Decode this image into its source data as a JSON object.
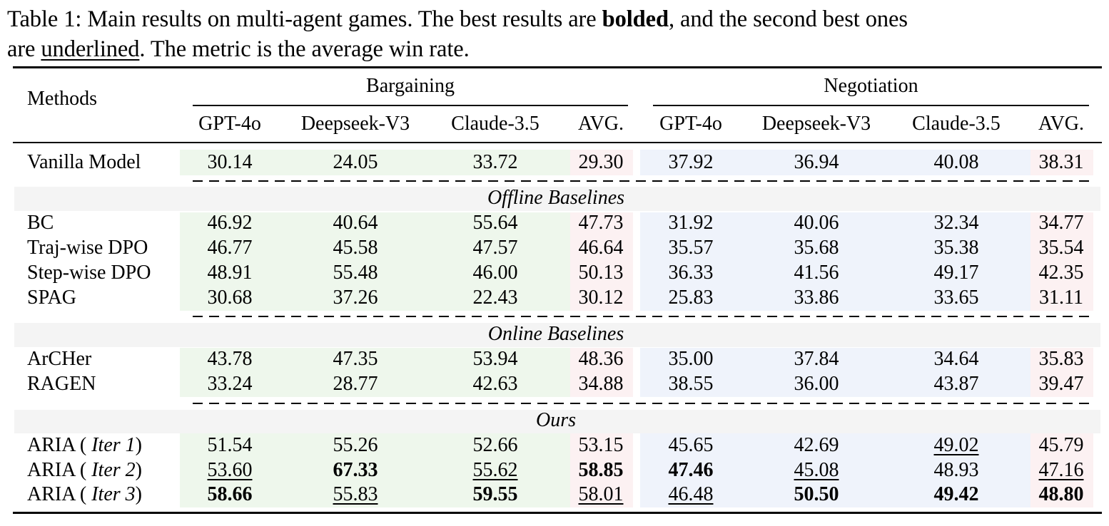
{
  "caption": {
    "p1": "Table 1: Main results on multi-agent games. The best results are ",
    "bold_word": "bolded",
    "p2": ", and the second best ones",
    "p3": "are ",
    "underline_word": "underlined",
    "p4": ". The metric is the average win rate."
  },
  "header": {
    "methods": "Methods",
    "group1": "Bargaining",
    "group2": "Negotiation",
    "columns": [
      "GPT-4o",
      "Deepseek-V3",
      "Claude-3.5",
      "AVG.",
      "GPT-4o",
      "Deepseek-V3",
      "Claude-3.5",
      "AVG."
    ]
  },
  "sections": {
    "offline": "Offline Baselines",
    "online": "Online Baselines",
    "ours": "Ours"
  },
  "iter_labels": {
    "prefix": "ARIA ( ",
    "iter1": "Iter 1",
    "iter2": "Iter 2",
    "iter3": "Iter 3",
    "suffix": ")"
  },
  "rows": [
    {
      "method": "Vanilla Model",
      "values": [
        "30.14",
        "24.05",
        "33.72",
        "29.30",
        "37.92",
        "36.94",
        "40.08",
        "38.31"
      ]
    },
    {
      "method": "BC",
      "values": [
        "46.92",
        "40.64",
        "55.64",
        "47.73",
        "31.92",
        "40.06",
        "32.34",
        "34.77"
      ]
    },
    {
      "method": "Traj-wise DPO",
      "values": [
        "46.77",
        "45.58",
        "47.57",
        "46.64",
        "35.57",
        "35.68",
        "35.38",
        "35.54"
      ]
    },
    {
      "method": "Step-wise DPO",
      "values": [
        "48.91",
        "55.48",
        "46.00",
        "50.13",
        "36.33",
        "41.56",
        "49.17",
        "42.35"
      ]
    },
    {
      "method": "SPAG",
      "values": [
        "30.68",
        "37.26",
        "22.43",
        "30.12",
        "25.83",
        "33.86",
        "33.65",
        "31.11"
      ]
    },
    {
      "method": "ArCHer",
      "values": [
        "43.78",
        "47.35",
        "53.94",
        "48.36",
        "35.00",
        "37.84",
        "34.64",
        "35.83"
      ]
    },
    {
      "method": "RAGEN",
      "values": [
        "33.24",
        "28.77",
        "42.63",
        "34.88",
        "38.55",
        "36.00",
        "43.87",
        "39.47"
      ]
    },
    {
      "method": "ARIA ( Iter 1)",
      "values": [
        "51.54",
        "55.26",
        "52.66",
        "53.15",
        "45.65",
        "42.69",
        "49.02",
        "45.79"
      ]
    },
    {
      "method": "ARIA ( Iter 2)",
      "values": [
        "53.60",
        "67.33",
        "55.62",
        "58.85",
        "47.46",
        "45.08",
        "48.93",
        "47.16"
      ]
    },
    {
      "method": "ARIA ( Iter 3)",
      "values": [
        "58.66",
        "55.83",
        "59.55",
        "58.01",
        "46.48",
        "50.50",
        "49.42",
        "48.80"
      ]
    }
  ],
  "colors": {
    "bargaining_bg": "#eef7ec",
    "avg_bg": "#fcf1f2",
    "negotiation_bg": "#eff3fb",
    "section_bg": "#f4f4f4"
  }
}
